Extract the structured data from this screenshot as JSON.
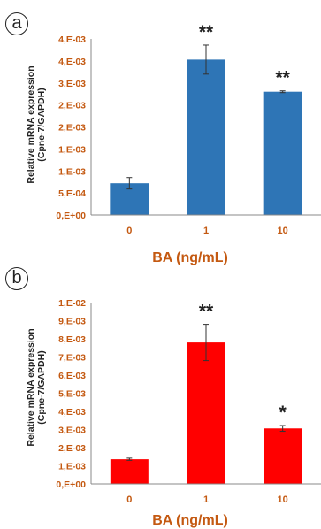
{
  "chart_data": [
    {
      "type": "bar",
      "panel": "a",
      "categories": [
        "0",
        "1",
        "10"
      ],
      "values": [
        0.00072,
        0.00353,
        0.0028
      ],
      "errors": [
        0.00013,
        0.00033,
        2e-05
      ],
      "significance": [
        "",
        "**",
        "**"
      ],
      "xlabel": "BA (ng/mL)",
      "ylabel_lines": [
        "Relative mRNA expression",
        "(Cpne-7/GAPDH)"
      ],
      "ylim": [
        0,
        0.004
      ],
      "yticks": [
        0,
        0.0005,
        0.001,
        0.0015,
        0.002,
        0.0025,
        0.003,
        0.0035,
        0.004
      ],
      "ytick_labels": [
        "0,E+00",
        "5,E-04",
        "1,E-03",
        "1,E-03",
        "2,E-03",
        "2,E-03",
        "3,E-03",
        "4,E-03",
        "4,E-03"
      ],
      "bar_color": "#2e75b6",
      "grid": false
    },
    {
      "type": "bar",
      "panel": "b",
      "categories": [
        "0",
        "1",
        "10"
      ],
      "values": [
        0.00136,
        0.0078,
        0.00306
      ],
      "errors": [
        6e-05,
        0.001,
        0.00016
      ],
      "significance": [
        "",
        "**",
        "*"
      ],
      "xlabel": "BA (ng/mL)",
      "ylabel_lines": [
        "Relative mRNA expression",
        "(Cpne-7/GAPDH)"
      ],
      "ylim": [
        0,
        0.01
      ],
      "yticks": [
        0,
        0.001,
        0.002,
        0.003,
        0.004,
        0.005,
        0.006,
        0.007,
        0.008,
        0.009,
        0.01
      ],
      "ytick_labels": [
        "0,E+00",
        "1,E-03",
        "2,E-03",
        "3,E-03",
        "4,E-03",
        "5,E-03",
        "6,E-03",
        "7,E-03",
        "8,E-03",
        "9,E-03",
        "1,E-02"
      ],
      "bar_color": "#ff0000",
      "grid": false
    }
  ],
  "panels": [
    {
      "letter": "a"
    },
    {
      "letter": "b"
    }
  ]
}
